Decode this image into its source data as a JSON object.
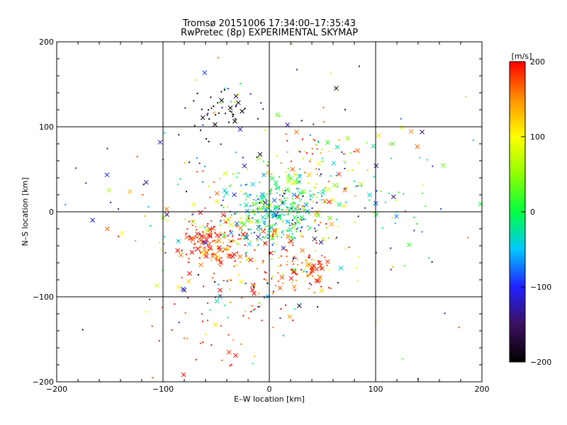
{
  "chart_data": {
    "type": "scatter",
    "title": "Tromsø 20151006 17:34:00–17:35:43",
    "subtitle": "RwPretec (8p) EXPERIMENTAL SKYMAP",
    "xlabel": "E–W location [km]",
    "ylabel": "N–S location [km]",
    "xlim": [
      -200,
      200
    ],
    "ylim": [
      -200,
      200
    ],
    "xticks": [
      "−200",
      "−100",
      "0",
      "100",
      "200"
    ],
    "yticks": [
      "−200",
      "−100",
      "0",
      "100",
      "200"
    ],
    "grid": true,
    "colorbar": {
      "label": "[m/s]",
      "range": [
        -200,
        200
      ],
      "ticks": [
        "200",
        "100",
        "0",
        "−100",
        "−200"
      ],
      "colormap": [
        "#000000",
        "#3c1060",
        "#2020ff",
        "#00c8ff",
        "#00ff40",
        "#90ff00",
        "#ffff00",
        "#ff9000",
        "#ff0000"
      ]
    },
    "clusters": [
      {
        "x": 0,
        "y": -5,
        "spread": 18,
        "count": 260,
        "velocity": -20
      },
      {
        "x": -55,
        "y": -35,
        "spread": 15,
        "count": 150,
        "velocity": 185
      },
      {
        "x": 35,
        "y": -65,
        "spread": 12,
        "count": 80,
        "velocity": 180
      },
      {
        "x": -45,
        "y": 112,
        "spread": 14,
        "count": 45,
        "velocity": -190
      },
      {
        "x": 30,
        "y": 20,
        "spread": 18,
        "count": 90,
        "velocity": 20
      },
      {
        "x": -25,
        "y": -60,
        "spread": 30,
        "count": 80,
        "velocity": 190
      },
      {
        "x": 45,
        "y": 60,
        "spread": 20,
        "count": 40,
        "velocity": 130
      },
      {
        "x": 0,
        "y": 0,
        "spread": 75,
        "count": 300,
        "velocity": 0
      },
      {
        "x": -50,
        "y": -150,
        "spread": 30,
        "count": 40,
        "velocity": 190
      },
      {
        "x": 120,
        "y": 30,
        "spread": 45,
        "count": 40,
        "velocity": -10
      }
    ]
  }
}
